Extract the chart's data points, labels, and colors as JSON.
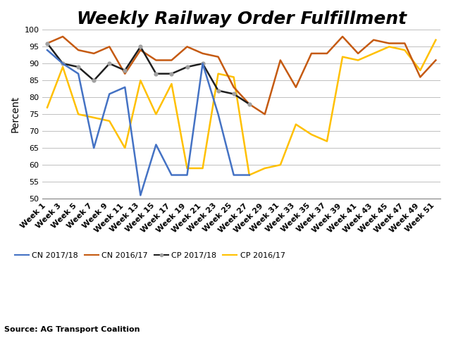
{
  "title": "Weekly Railway Order Fulfillment",
  "ylabel": "Percent",
  "source": "Source: AG Transport Coalition",
  "ylim": [
    50,
    100
  ],
  "yticks": [
    50,
    55,
    60,
    65,
    70,
    75,
    80,
    85,
    90,
    95,
    100
  ],
  "x_labels": [
    "Week 1",
    "Week 3",
    "Week 5",
    "Week 7",
    "Week 9",
    "Week 11",
    "Week 13",
    "Week 15",
    "Week 17",
    "Week 19",
    "Week 21",
    "Week 23",
    "Week 25",
    "Week 27",
    "Week 29",
    "Week 31",
    "Week 33",
    "Week 35",
    "Week 37",
    "Week 39",
    "Week 41",
    "Week 43",
    "Week 45",
    "Week 47",
    "Week 49",
    "Week 51"
  ],
  "cn_2017": [
    94,
    90,
    87,
    65,
    81,
    83,
    51,
    66,
    57,
    57,
    90,
    75,
    57,
    57,
    null,
    null,
    null,
    null,
    null,
    null,
    null,
    null,
    null,
    null,
    null,
    null
  ],
  "cn_2016": [
    96,
    98,
    94,
    93,
    95,
    87,
    94,
    91,
    91,
    95,
    93,
    92,
    83,
    78,
    75,
    91,
    83,
    93,
    93,
    98,
    93,
    97,
    96,
    96,
    86,
    91
  ],
  "cp_2017": [
    96,
    90,
    89,
    85,
    90,
    88,
    95,
    87,
    87,
    89,
    90,
    82,
    81,
    78,
    null,
    null,
    null,
    null,
    null,
    null,
    null,
    null,
    null,
    null,
    null,
    null
  ],
  "cp_2016": [
    77,
    89,
    75,
    74,
    73,
    65,
    85,
    75,
    84,
    59,
    59,
    87,
    86,
    57,
    59,
    60,
    72,
    69,
    67,
    92,
    91,
    93,
    95,
    94,
    88,
    97
  ],
  "cn_2017_color": "#4472C4",
  "cn_2016_color": "#C55A11",
  "cp_2017_color": "#1F1F1F",
  "cp_2016_color": "#FFC000",
  "cp_2017_marker_color": "#A0A0A0",
  "background_color": "#FFFFFF",
  "grid_color": "#C0C0C0",
  "title_fontsize": 18,
  "ylabel_fontsize": 10,
  "tick_fontsize": 8,
  "legend_fontsize": 8
}
